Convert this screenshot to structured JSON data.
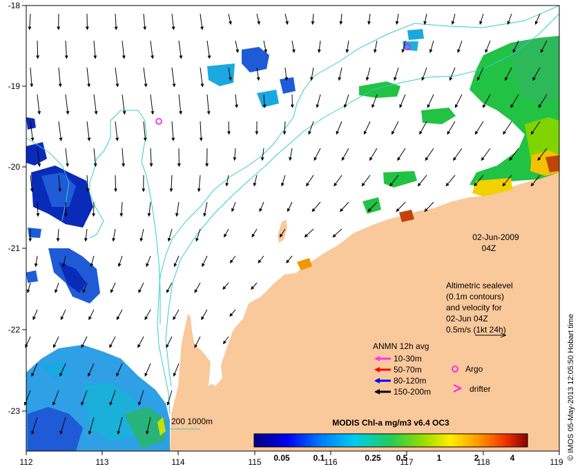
{
  "map": {
    "x_ticks": [
      "112",
      "113",
      "114",
      "115",
      "116",
      "117",
      "118",
      "119"
    ],
    "y_ticks": [
      "-18",
      "-19",
      "-20",
      "-21",
      "-22",
      "-23"
    ],
    "date_label": "02-Jun-2009",
    "time_label": "04Z",
    "altimetry_note": [
      "Altimetric sealevel",
      "(0.1m contours)",
      "and velocity for",
      "02-Jun 04Z",
      "0.5m/s (1kt 24h)"
    ],
    "legend_title": "ANMN 12h avg",
    "legend_items": [
      {
        "label": "10-30m",
        "color": "#ff33ff"
      },
      {
        "label": "50-70m",
        "color": "#ff0000"
      },
      {
        "label": "80-120m",
        "color": "#0000ff"
      },
      {
        "label": "150-200m",
        "color": "#000000"
      }
    ],
    "argo_label": "Argo",
    "drifter_label": "drifter",
    "bathy_label": "200  1000m",
    "colorbar_title": "MODIS Chl-a mg/m3 v6.4 OC3",
    "colorbar_ticks": [
      "0.05",
      "0.1",
      "0.25",
      "0.5",
      "1",
      "2",
      "4"
    ],
    "credit": "© IMOS 05-May-2013 12:05:50 Hobart time",
    "colors": {
      "land": "#f9c89b",
      "contour": "#33cccc",
      "argo": "#ff00ff",
      "arrow": "#000000"
    }
  }
}
